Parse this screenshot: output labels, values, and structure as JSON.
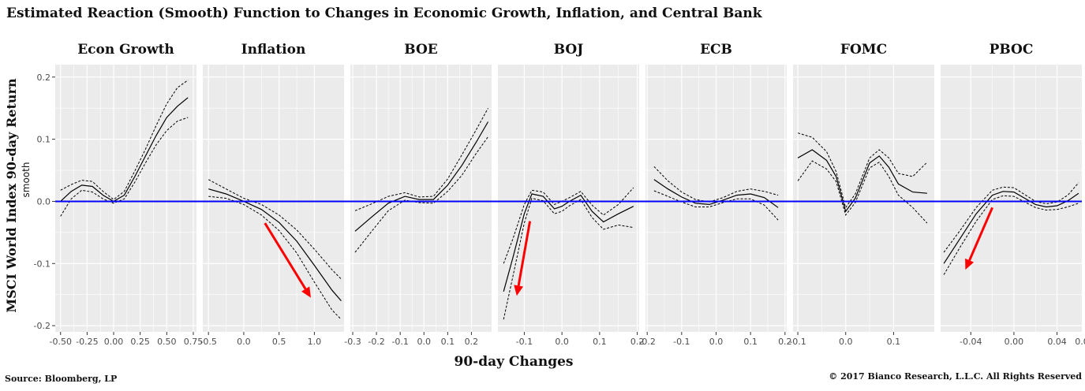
{
  "title": "Estimated Reaction (Smooth) Function to Changes in Economic Growth, Inflation, and Central Bank",
  "y_axis_label": "MSCI World Index 90-day Return",
  "y_axis_sublabel": "smooth",
  "x_axis_label": "90-day Changes",
  "source": "Source: Bloomberg, LP",
  "copyright": "© 2017 Bianco Research, L.L.C. All Rights Reserved",
  "colors": {
    "panel_bg": "#ebebeb",
    "grid": "#ffffff",
    "reference_line": "#0000ff",
    "arrow": "#ff0000",
    "curve": "#000000"
  },
  "chart_data": {
    "type": "line",
    "ylim": [
      -0.21,
      0.22
    ],
    "y_ticks": [
      -0.2,
      -0.1,
      0.0,
      0.1,
      0.2
    ],
    "y_tick_labels": [
      "-0.2",
      "-0.1",
      "0.0",
      "0.1",
      "0.2"
    ],
    "reference_line_y": 0.0,
    "grid": true,
    "panels": [
      {
        "name": "Econ Growth",
        "xlim": [
          -0.55,
          0.78
        ],
        "x_ticks": [
          -0.5,
          -0.25,
          0.0,
          0.25,
          0.5,
          0.75
        ],
        "x_tick_labels": [
          "-0.50",
          "-0.25",
          "0.00",
          "0.25",
          "0.50",
          "0.75"
        ],
        "x": [
          -0.5,
          -0.4,
          -0.3,
          -0.2,
          -0.1,
          0.0,
          0.1,
          0.2,
          0.3,
          0.4,
          0.5,
          0.6,
          0.7
        ],
        "fit": [
          0.0,
          0.016,
          0.026,
          0.024,
          0.01,
          0.0,
          0.01,
          0.04,
          0.073,
          0.106,
          0.135,
          0.153,
          0.167
        ],
        "upper": [
          0.018,
          0.027,
          0.034,
          0.032,
          0.016,
          0.003,
          0.016,
          0.049,
          0.084,
          0.122,
          0.157,
          0.183,
          0.195
        ],
        "lower": [
          -0.024,
          0.004,
          0.018,
          0.015,
          0.004,
          -0.003,
          0.004,
          0.031,
          0.062,
          0.091,
          0.114,
          0.129,
          0.135
        ]
      },
      {
        "name": "Inflation",
        "xlim": [
          -0.58,
          1.42
        ],
        "x_ticks": [
          -0.5,
          0.0,
          0.5,
          1.0
        ],
        "x_tick_labels": [
          "-0.5",
          "0.0",
          "0.5",
          "1.0"
        ],
        "x": [
          -0.5,
          -0.25,
          0.0,
          0.25,
          0.5,
          0.75,
          1.0,
          1.25,
          1.38
        ],
        "fit": [
          0.02,
          0.012,
          0.0,
          -0.013,
          -0.034,
          -0.064,
          -0.103,
          -0.143,
          -0.16
        ],
        "upper": [
          0.035,
          0.02,
          0.005,
          -0.005,
          -0.022,
          -0.046,
          -0.077,
          -0.11,
          -0.125
        ],
        "lower": [
          0.008,
          0.005,
          -0.005,
          -0.022,
          -0.047,
          -0.083,
          -0.13,
          -0.175,
          -0.19
        ],
        "arrow": {
          "from": [
            0.3,
            -0.035
          ],
          "to": [
            0.95,
            -0.155
          ]
        }
      },
      {
        "name": "BOE",
        "xlim": [
          -0.31,
          0.285
        ],
        "x_ticks": [
          -0.3,
          -0.2,
          -0.1,
          0.0,
          0.1,
          0.2
        ],
        "x_tick_labels": [
          "-0.3",
          "-0.2",
          "-0.1",
          "0.0",
          "0.1",
          "0.2"
        ],
        "x": [
          -0.29,
          -0.22,
          -0.15,
          -0.08,
          -0.02,
          0.04,
          0.1,
          0.16,
          0.22,
          0.27
        ],
        "fit": [
          -0.048,
          -0.025,
          -0.003,
          0.008,
          0.003,
          0.003,
          0.026,
          0.058,
          0.095,
          0.128
        ],
        "upper": [
          -0.015,
          -0.004,
          0.008,
          0.014,
          0.007,
          0.008,
          0.036,
          0.075,
          0.115,
          0.15
        ],
        "lower": [
          -0.082,
          -0.048,
          -0.015,
          0.002,
          -0.002,
          -0.003,
          0.016,
          0.042,
          0.077,
          0.104
        ]
      },
      {
        "name": "BOJ",
        "xlim": [
          -0.17,
          0.205
        ],
        "x_ticks": [
          -0.1,
          0.0,
          0.1,
          0.2
        ],
        "x_tick_labels": [
          "-0.1",
          "0.0",
          "0.1",
          "0.2"
        ],
        "x": [
          -0.155,
          -0.13,
          -0.1,
          -0.08,
          -0.05,
          -0.02,
          0.0,
          0.02,
          0.05,
          0.08,
          0.11,
          0.15,
          0.19
        ],
        "fit": [
          -0.145,
          -0.09,
          -0.02,
          0.012,
          0.008,
          -0.012,
          -0.008,
          0.0,
          0.01,
          -0.016,
          -0.033,
          -0.02,
          -0.008
        ],
        "upper": [
          -0.1,
          -0.06,
          -0.005,
          0.018,
          0.015,
          -0.005,
          0.0,
          0.006,
          0.016,
          -0.006,
          -0.022,
          -0.005,
          0.022
        ],
        "lower": [
          -0.19,
          -0.12,
          -0.035,
          0.005,
          0.001,
          -0.02,
          -0.016,
          -0.007,
          0.003,
          -0.026,
          -0.045,
          -0.038,
          -0.042
        ],
        "arrow": {
          "from": [
            -0.085,
            -0.032
          ],
          "to": [
            -0.12,
            -0.152
          ]
        }
      },
      {
        "name": "ECB",
        "xlim": [
          -0.205,
          0.205
        ],
        "x_ticks": [
          -0.2,
          -0.1,
          0.0,
          0.1,
          0.2
        ],
        "x_tick_labels": [
          "-0.2",
          "-0.1",
          "0.0",
          "0.1",
          "0.2"
        ],
        "x": [
          -0.18,
          -0.14,
          -0.1,
          -0.06,
          -0.02,
          0.02,
          0.06,
          0.1,
          0.14,
          0.18
        ],
        "fit": [
          0.035,
          0.02,
          0.007,
          -0.003,
          -0.005,
          0.002,
          0.01,
          0.012,
          0.006,
          -0.01
        ],
        "upper": [
          0.056,
          0.033,
          0.015,
          0.003,
          -0.001,
          0.006,
          0.016,
          0.02,
          0.016,
          0.01
        ],
        "lower": [
          0.017,
          0.008,
          -0.001,
          -0.009,
          -0.009,
          -0.002,
          0.004,
          0.004,
          -0.006,
          -0.03
        ]
      },
      {
        "name": "FOMC",
        "xlim": [
          -0.11,
          0.185
        ],
        "x_ticks": [
          -0.1,
          0.0,
          0.1
        ],
        "x_tick_labels": [
          "-0.1",
          "0.0",
          "0.1"
        ],
        "x": [
          -0.1,
          -0.07,
          -0.04,
          -0.02,
          0.0,
          0.02,
          0.05,
          0.07,
          0.09,
          0.11,
          0.14,
          0.17
        ],
        "fit": [
          0.07,
          0.083,
          0.066,
          0.04,
          -0.016,
          0.005,
          0.062,
          0.073,
          0.055,
          0.028,
          0.015,
          0.013
        ],
        "upper": [
          0.11,
          0.103,
          0.08,
          0.048,
          -0.01,
          0.012,
          0.07,
          0.083,
          0.07,
          0.045,
          0.04,
          0.063
        ],
        "lower": [
          0.033,
          0.065,
          0.052,
          0.032,
          -0.022,
          -0.002,
          0.054,
          0.063,
          0.04,
          0.01,
          -0.01,
          -0.035
        ]
      },
      {
        "name": "PBOC",
        "xlim": [
          -0.068,
          0.063
        ],
        "x_ticks": [
          -0.04,
          0.0,
          0.04
        ],
        "x_tick_labels": [
          "-0.04",
          "0.00",
          "0.04"
        ],
        "x_tick_extra_label": "0.0",
        "x": [
          -0.065,
          -0.05,
          -0.035,
          -0.02,
          -0.01,
          0.0,
          0.01,
          0.02,
          0.03,
          0.04,
          0.05,
          0.06
        ],
        "fit": [
          -0.1,
          -0.06,
          -0.02,
          0.01,
          0.016,
          0.015,
          0.005,
          -0.005,
          -0.009,
          -0.007,
          0.001,
          0.013
        ],
        "upper": [
          -0.082,
          -0.047,
          -0.01,
          0.018,
          0.023,
          0.022,
          0.011,
          0.0,
          -0.004,
          -0.001,
          0.01,
          0.03
        ],
        "lower": [
          -0.118,
          -0.074,
          -0.032,
          0.003,
          0.009,
          0.008,
          -0.001,
          -0.01,
          -0.014,
          -0.013,
          -0.009,
          -0.003
        ],
        "arrow": {
          "from": [
            -0.02,
            -0.01
          ],
          "to": [
            -0.045,
            -0.11
          ]
        }
      }
    ]
  }
}
